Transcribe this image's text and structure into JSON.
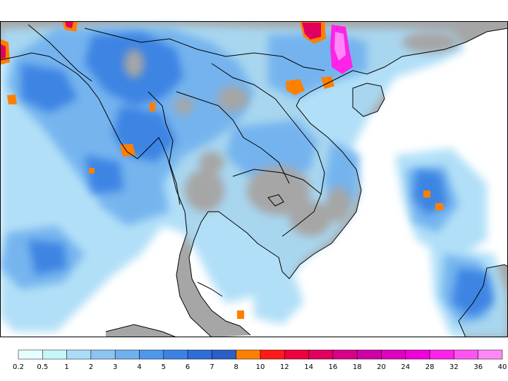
{
  "legend": {
    "thresholds": [
      "0.2",
      "0.5",
      "1",
      "2",
      "3",
      "4",
      "5",
      "6",
      "7",
      "8",
      "10",
      "12",
      "14",
      "16",
      "18",
      "20",
      "24",
      "28",
      "32",
      "36",
      "40"
    ],
    "colors": [
      "#e6ffff",
      "#c6f7f7",
      "#a9dcf7",
      "#8cc4f2",
      "#6fb0ee",
      "#4f97ea",
      "#3b82e3",
      "#2f6ed8",
      "#2a5fc4",
      "#ff7f00",
      "#ff1a1a",
      "#f0003c",
      "#e00060",
      "#d80088",
      "#d000a8",
      "#e000c0",
      "#f000d8",
      "#ff22e8",
      "#ff55f0",
      "#ff88f6"
    ]
  },
  "map": {
    "land_color": "#a6a6a6",
    "sea_color": "#ffffff",
    "border_color": "#000000"
  }
}
